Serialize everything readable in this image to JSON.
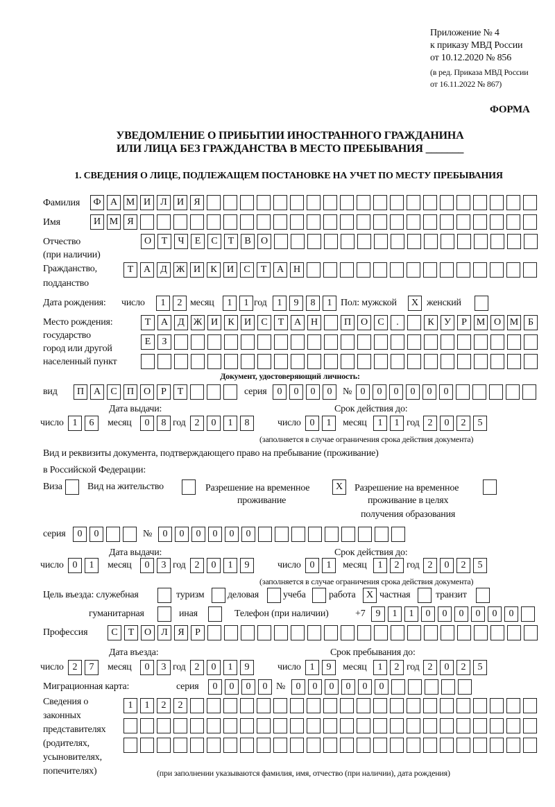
{
  "header": {
    "appendix": "Приложение № 4",
    "order": "к приказу МВД России",
    "order_date": "от 10.12.2020 № 856",
    "edition": "(в ред. Приказа МВД России",
    "edition_date": "от 16.11.2022 № 867)",
    "form": "ФОРМА",
    "title1": "УВЕДОМЛЕНИЕ О ПРИБЫТИИ ИНОСТРАННОГО ГРАЖДАНИНА",
    "title2": "ИЛИ ЛИЦА БЕЗ ГРАЖДАНСТВА В МЕСТО ПРЕБЫВАНИЯ _______",
    "section1": "1. СВЕДЕНИЯ О ЛИЦЕ, ПОДЛЕЖАЩЕМ ПОСТАНОВКЕ НА УЧЕТ ПО МЕСТУ ПРЕБЫВАНИЯ"
  },
  "labels": {
    "surname": "Фамилия",
    "name": "Имя",
    "patronymic": "Отчество",
    "patronymic_note": "(при наличии)",
    "citizenship": "Гражданство,",
    "citizenship2": "подданство",
    "birth_date": "Дата рождения:",
    "day": "число",
    "month": "месяц",
    "year": "год",
    "sex": "Пол: мужской",
    "female": "женский",
    "birthplace1": "Место рождения:",
    "birthplace2": "государство",
    "birthplace3": "город или другой",
    "birthplace4": "населенный пункт",
    "id_doc": "Документ, удостоверяющий личность:",
    "kind": "вид",
    "series": "серия",
    "number": "№",
    "issue_date": "Дата выдачи:",
    "valid_until": "Срок действия до:",
    "validity_note": "(заполняется в случае ограничения срока действия документа)",
    "right_doc1": "Вид и реквизиты документа, подтверждающего право на пребывание (проживание)",
    "right_doc2": "в Российской Федерации:",
    "visa": "Виза",
    "residence": "Вид на жительство",
    "temp_res1": "Разрешение на временное",
    "temp_res2": "проживание",
    "temp_edu1": "Разрешение на временное",
    "temp_edu2": "проживание в целях",
    "temp_edu3": "получения образования",
    "purpose": "Цель въезда: служебная",
    "tourism": "туризм",
    "business": "деловая",
    "study": "учеба",
    "work": "работа",
    "private": "частная",
    "transit": "транзит",
    "humanitarian": "гуманитарная",
    "other": "иная",
    "phone": "Телефон (при наличии)",
    "phone_prefix": "+7",
    "profession": "Профессия",
    "entry_date": "Дата въезда:",
    "stay_until": "Срок пребывания до:",
    "migration_card": "Миграционная карта:",
    "reps1": "Сведения о",
    "reps2": "законных",
    "reps3": "представителях",
    "reps4": "(родителях,",
    "reps5": "усыновителях,",
    "reps6": "попечителях)",
    "reps_note": "(при заполнении указываются фамилия, имя, отчество (при наличии), дата рождения)"
  },
  "person": {
    "surname": "ФАМИЛИЯ",
    "name": "ИМЯ",
    "patronymic": "ОТЧЕСТВО",
    "citizenship": "ТАДЖИКИСТАН",
    "birth_day": "12",
    "birth_month": "11",
    "birth_year": "1981",
    "male": "X",
    "female": "",
    "birthplace1": "ТАДЖИКИСТАН ПОС. КУРМОМБ",
    "birthplace2": "ЕЗ",
    "birthplace3": ""
  },
  "id_document": {
    "kind": "ПАСПОРТ",
    "series": "0000",
    "number": "000000",
    "issue_day": "16",
    "issue_month": "08",
    "issue_year": "2018",
    "valid_day": "01",
    "valid_month": "11",
    "valid_year": "2025"
  },
  "right_document": {
    "visa": "",
    "residence": "",
    "temp_residence": "X",
    "temp_edu": "",
    "series": "00",
    "number": "000000",
    "issue_day": "01",
    "issue_month": "03",
    "issue_year": "2019",
    "valid_day": "01",
    "valid_month": "12",
    "valid_year": "2025"
  },
  "purpose": {
    "official": "",
    "tourism": "",
    "business": "",
    "study": "",
    "work": "X",
    "private": "",
    "transit": "",
    "humanitarian": "",
    "other": ""
  },
  "phone": "911000000",
  "profession": "СТОЛЯР",
  "stay": {
    "entry_day": "27",
    "entry_month": "03",
    "entry_year": "2019",
    "until_day": "19",
    "until_month": "12",
    "until_year": "2025"
  },
  "migration_card": {
    "series": "0000",
    "number": "000000"
  },
  "representatives": {
    "line1": "1122",
    "line2": "",
    "line3": ""
  }
}
